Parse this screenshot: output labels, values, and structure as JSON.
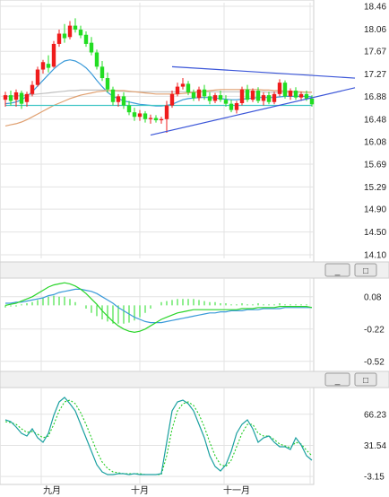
{
  "colors": {
    "up_candle": "#ef1c1c",
    "down_candle": "#22dd22",
    "ma_short": "#3a9ad9",
    "ma_mid": "#c0c0c0",
    "ma_long": "#e0a070",
    "ma_flat": "#43c6c6",
    "trendline": "#3a55d8",
    "macd_dif": "#2ad52a",
    "macd_dea": "#3a9ad9",
    "macd_hist": "#22dd22",
    "kdj_k": "#1aa0a0",
    "kdj_d": "#22cc22",
    "grid": "#e3e3e3"
  },
  "xaxis": {
    "labels": [
      "九月",
      "十月",
      "十一月"
    ]
  },
  "panel_buttons": [
    "_",
    "□"
  ],
  "chart_data": [
    {
      "type": "candlestick",
      "title": "",
      "yticks": [
        "18.46",
        "18.06",
        "17.67",
        "17.27",
        "16.88",
        "16.48",
        "16.08",
        "15.69",
        "15.29",
        "14.90",
        "14.50",
        "14.10"
      ],
      "ylim": [
        14.1,
        18.46
      ],
      "grid": true,
      "candles": [
        [
          16.82,
          16.96,
          16.7,
          16.9
        ],
        [
          16.9,
          16.98,
          16.72,
          16.8
        ],
        [
          16.82,
          17.0,
          16.7,
          16.95
        ],
        [
          16.94,
          16.98,
          16.66,
          16.75
        ],
        [
          16.78,
          16.96,
          16.7,
          16.92
        ],
        [
          16.92,
          17.15,
          16.88,
          17.08
        ],
        [
          17.08,
          17.4,
          17.05,
          17.35
        ],
        [
          17.35,
          17.52,
          17.28,
          17.48
        ],
        [
          17.45,
          17.6,
          17.3,
          17.38
        ],
        [
          17.4,
          17.85,
          17.38,
          17.8
        ],
        [
          17.8,
          18.05,
          17.75,
          17.98
        ],
        [
          17.98,
          18.15,
          17.82,
          17.9
        ],
        [
          17.92,
          18.2,
          17.88,
          18.12
        ],
        [
          18.12,
          18.25,
          18.0,
          18.05
        ],
        [
          18.05,
          18.12,
          17.9,
          17.95
        ],
        [
          17.96,
          18.02,
          17.75,
          17.8
        ],
        [
          17.82,
          17.92,
          17.6,
          17.65
        ],
        [
          17.65,
          17.7,
          17.35,
          17.4
        ],
        [
          17.4,
          17.5,
          17.15,
          17.2
        ],
        [
          17.2,
          17.3,
          16.95,
          17.0
        ],
        [
          17.0,
          17.05,
          16.72,
          16.78
        ],
        [
          16.78,
          16.92,
          16.7,
          16.88
        ],
        [
          16.88,
          16.95,
          16.66,
          16.72
        ],
        [
          16.72,
          16.8,
          16.55,
          16.6
        ],
        [
          16.6,
          16.68,
          16.45,
          16.52
        ],
        [
          16.52,
          16.64,
          16.45,
          16.58
        ],
        [
          16.58,
          16.62,
          16.42,
          16.48
        ],
        [
          16.48,
          16.56,
          16.4,
          16.5
        ],
        [
          16.5,
          16.55,
          16.42,
          16.46
        ],
        [
          16.46,
          16.52,
          16.4,
          16.48
        ],
        [
          16.48,
          16.8,
          16.24,
          16.72
        ],
        [
          16.72,
          16.98,
          16.68,
          16.92
        ],
        [
          16.92,
          17.12,
          16.88,
          17.05
        ],
        [
          17.05,
          17.2,
          17.0,
          17.1
        ],
        [
          17.1,
          17.15,
          16.9,
          16.95
        ],
        [
          16.95,
          17.0,
          16.8,
          16.85
        ],
        [
          16.85,
          17.05,
          16.8,
          17.0
        ],
        [
          17.0,
          17.08,
          16.82,
          16.88
        ],
        [
          16.88,
          16.95,
          16.74,
          16.8
        ],
        [
          16.8,
          16.94,
          16.76,
          16.9
        ],
        [
          16.9,
          16.98,
          16.78,
          16.82
        ],
        [
          16.82,
          16.9,
          16.7,
          16.75
        ],
        [
          16.75,
          16.82,
          16.6,
          16.64
        ],
        [
          16.64,
          16.8,
          16.58,
          16.76
        ],
        [
          16.76,
          17.05,
          16.72,
          17.0
        ],
        [
          17.0,
          17.08,
          16.78,
          16.82
        ],
        [
          16.82,
          17.02,
          16.78,
          16.98
        ],
        [
          16.98,
          17.04,
          16.76,
          16.8
        ],
        [
          16.8,
          16.95,
          16.72,
          16.9
        ],
        [
          16.9,
          16.96,
          16.74,
          16.78
        ],
        [
          16.78,
          16.96,
          16.74,
          16.92
        ],
        [
          16.92,
          17.18,
          16.88,
          17.12
        ],
        [
          17.12,
          17.16,
          16.84,
          16.88
        ],
        [
          16.88,
          17.02,
          16.82,
          16.98
        ],
        [
          16.98,
          17.04,
          16.82,
          16.86
        ],
        [
          16.86,
          16.96,
          16.8,
          16.92
        ],
        [
          16.92,
          16.98,
          16.8,
          16.84
        ],
        [
          16.84,
          16.9,
          16.7,
          16.74
        ]
      ],
      "overlays": [
        {
          "color_key": "ma_short",
          "values": [
            16.75,
            16.76,
            16.78,
            16.82,
            16.88,
            16.96,
            17.06,
            17.16,
            17.26,
            17.36,
            17.44,
            17.5,
            17.52,
            17.5,
            17.45,
            17.38,
            17.28,
            17.16,
            17.05,
            16.95,
            16.88,
            16.84,
            16.8,
            16.78,
            16.76,
            16.74,
            16.73,
            16.72,
            16.71,
            16.71,
            16.72,
            16.74,
            16.78,
            16.82,
            16.84,
            16.85,
            16.86,
            16.86,
            16.86,
            16.85,
            16.84,
            16.83,
            16.82,
            16.82,
            16.83,
            16.84,
            16.85,
            16.86,
            16.86,
            16.86,
            16.86,
            16.87,
            16.88,
            16.88,
            16.88,
            16.88,
            16.88,
            16.87
          ]
        },
        {
          "color_key": "ma_mid",
          "values": [
            16.88,
            16.88,
            16.89,
            16.89,
            16.9,
            16.91,
            16.92,
            16.93,
            16.94,
            16.95,
            16.96,
            16.97,
            16.98,
            16.98,
            16.99,
            16.99,
            16.99,
            16.99,
            16.99,
            16.98,
            16.98,
            16.97,
            16.97,
            16.96,
            16.96,
            16.96,
            16.96,
            16.96,
            16.96,
            16.96,
            16.96,
            16.96,
            16.96,
            16.96,
            16.96,
            16.96,
            16.96,
            16.96,
            16.96,
            16.96,
            16.96,
            16.96,
            16.96,
            16.96,
            16.96,
            16.96,
            16.96,
            16.96,
            16.96,
            16.95,
            16.95,
            16.95,
            16.95,
            16.95,
            16.95,
            16.95,
            16.95,
            16.95
          ]
        },
        {
          "color_key": "ma_long",
          "values": [
            16.36,
            16.38,
            16.4,
            16.43,
            16.47,
            16.52,
            16.57,
            16.62,
            16.67,
            16.72,
            16.76,
            16.8,
            16.84,
            16.87,
            16.9,
            16.92,
            16.94,
            16.96,
            16.97,
            16.98,
            16.98,
            16.98,
            16.98,
            16.97,
            16.96,
            16.95,
            16.94,
            16.93,
            16.92,
            16.92,
            16.92,
            16.92,
            16.92,
            16.93,
            16.94,
            16.95,
            16.96,
            16.97,
            16.98,
            16.99,
            17.0,
            17.0,
            17.0,
            17.0,
            17.0,
            17.0,
            17.0,
            17.0,
            16.99,
            16.99,
            16.98,
            16.98,
            16.97,
            16.97,
            16.96,
            16.96,
            16.95,
            16.95
          ]
        },
        {
          "color_key": "ma_flat",
          "values": [
            16.72,
            16.72,
            16.72,
            16.72,
            16.72,
            16.72,
            16.72,
            16.72,
            16.72,
            16.72,
            16.72,
            16.72,
            16.72,
            16.72,
            16.72,
            16.72,
            16.72,
            16.72,
            16.72,
            16.72,
            16.72,
            16.72,
            16.72,
            16.72,
            16.72,
            16.72,
            16.72,
            16.72,
            16.72,
            16.72,
            16.72,
            16.72,
            16.72,
            16.72,
            16.72,
            16.72,
            16.72,
            16.72,
            16.72,
            16.72,
            16.72,
            16.72,
            16.72,
            16.72,
            16.72,
            16.72,
            16.72,
            16.72,
            16.72,
            16.72,
            16.72,
            16.72,
            16.72,
            16.72,
            16.72,
            16.72,
            16.72,
            16.72
          ]
        }
      ],
      "trendlines": [
        {
          "from": [
            31,
            17.4
          ],
          "to": [
            65,
            17.2
          ]
        },
        {
          "from": [
            27,
            16.2
          ],
          "to": [
            65,
            17.03
          ]
        }
      ]
    },
    {
      "type": "macd",
      "title": "",
      "yticks": [
        "0.08",
        "-0.22",
        "-0.52"
      ],
      "ylim": [
        -0.58,
        0.22
      ],
      "grid": true,
      "dif": [
        0.0,
        0.01,
        0.02,
        0.04,
        0.06,
        0.08,
        0.11,
        0.14,
        0.17,
        0.19,
        0.2,
        0.21,
        0.2,
        0.18,
        0.15,
        0.11,
        0.06,
        0.01,
        -0.05,
        -0.1,
        -0.15,
        -0.19,
        -0.22,
        -0.24,
        -0.25,
        -0.24,
        -0.22,
        -0.19,
        -0.16,
        -0.13,
        -0.11,
        -0.09,
        -0.07,
        -0.06,
        -0.05,
        -0.04,
        -0.04,
        -0.04,
        -0.04,
        -0.04,
        -0.04,
        -0.04,
        -0.04,
        -0.04,
        -0.03,
        -0.03,
        -0.03,
        -0.02,
        -0.02,
        -0.02,
        -0.02,
        -0.01,
        -0.01,
        -0.01,
        -0.01,
        -0.01,
        -0.01,
        -0.02
      ],
      "dea": [
        0.02,
        0.02,
        0.03,
        0.03,
        0.04,
        0.05,
        0.06,
        0.07,
        0.09,
        0.1,
        0.12,
        0.13,
        0.14,
        0.15,
        0.15,
        0.14,
        0.13,
        0.11,
        0.08,
        0.05,
        0.02,
        -0.02,
        -0.05,
        -0.08,
        -0.11,
        -0.13,
        -0.15,
        -0.16,
        -0.16,
        -0.16,
        -0.15,
        -0.14,
        -0.13,
        -0.12,
        -0.11,
        -0.1,
        -0.09,
        -0.08,
        -0.07,
        -0.07,
        -0.06,
        -0.06,
        -0.05,
        -0.05,
        -0.05,
        -0.04,
        -0.04,
        -0.04,
        -0.03,
        -0.03,
        -0.03,
        -0.03,
        -0.02,
        -0.02,
        -0.02,
        -0.02,
        -0.02,
        -0.02
      ],
      "hist": [
        -0.02,
        -0.01,
        -0.01,
        0.01,
        0.02,
        0.03,
        0.05,
        0.07,
        0.08,
        0.09,
        0.08,
        0.08,
        0.06,
        0.03,
        0.0,
        -0.03,
        -0.07,
        -0.1,
        -0.13,
        -0.15,
        -0.17,
        -0.17,
        -0.17,
        -0.16,
        -0.14,
        -0.11,
        -0.07,
        -0.03,
        0.0,
        0.03,
        0.04,
        0.05,
        0.06,
        0.06,
        0.06,
        0.06,
        0.05,
        0.04,
        0.03,
        0.03,
        0.02,
        0.02,
        0.01,
        0.01,
        0.02,
        0.01,
        0.01,
        0.02,
        0.01,
        0.01,
        0.01,
        0.02,
        0.01,
        0.01,
        0.01,
        0.01,
        0.01,
        0.0
      ]
    },
    {
      "type": "kdj",
      "title": "",
      "yticks": [
        "66.23",
        "31.54",
        "-3.15"
      ],
      "ylim": [
        -8,
        92
      ],
      "grid": true,
      "k": [
        60,
        58,
        52,
        45,
        42,
        50,
        40,
        35,
        45,
        65,
        80,
        85,
        78,
        70,
        55,
        40,
        25,
        10,
        2,
        -1,
        -1,
        0,
        0,
        -1,
        0,
        -1,
        -1,
        -1,
        -1,
        0,
        35,
        70,
        80,
        82,
        78,
        70,
        55,
        40,
        20,
        8,
        3,
        10,
        25,
        45,
        55,
        60,
        50,
        35,
        40,
        42,
        35,
        30,
        30,
        27,
        40,
        32,
        20,
        15
      ],
      "d": [
        58,
        57,
        55,
        50,
        46,
        47,
        44,
        40,
        42,
        55,
        70,
        80,
        82,
        78,
        68,
        55,
        40,
        25,
        13,
        6,
        2,
        1,
        0,
        0,
        0,
        0,
        -1,
        -1,
        -1,
        -1,
        20,
        50,
        70,
        78,
        80,
        76,
        66,
        52,
        35,
        20,
        10,
        8,
        15,
        30,
        45,
        55,
        55,
        45,
        42,
        42,
        38,
        33,
        31,
        29,
        35,
        33,
        26,
        20
      ]
    }
  ]
}
